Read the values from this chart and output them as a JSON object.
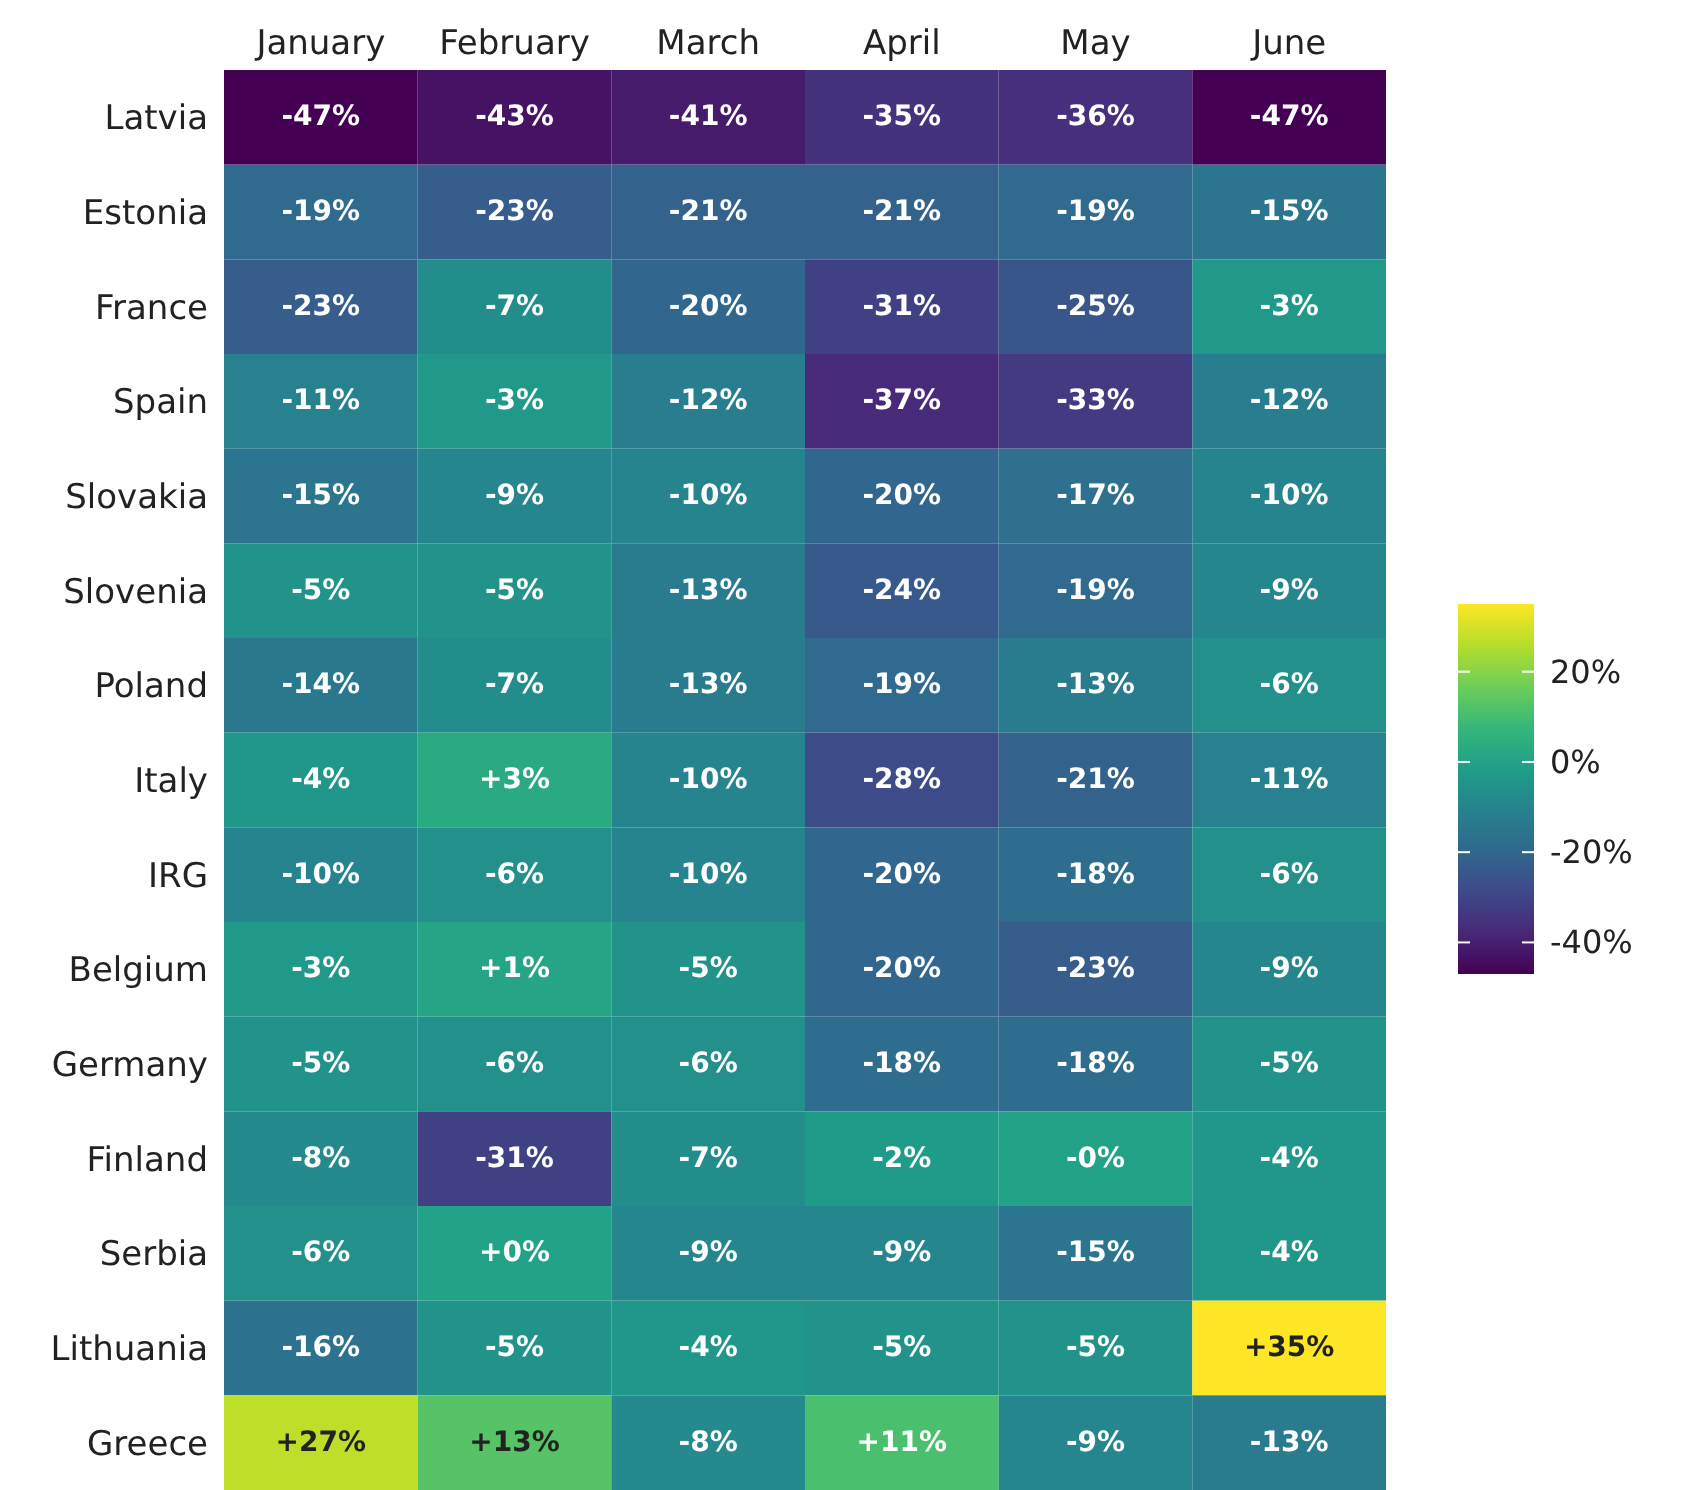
{
  "chart_data": {
    "type": "heatmap",
    "categories": [
      "January",
      "February",
      "March",
      "April",
      "May",
      "June"
    ],
    "y_categories": [
      "Latvia",
      "Estonia",
      "France",
      "Spain",
      "Slovakia",
      "Slovenia",
      "Poland",
      "Italy",
      "IRG",
      "Belgium",
      "Germany",
      "Finland",
      "Serbia",
      "Lithuania",
      "Greece"
    ],
    "cells": [
      [
        -47,
        -43,
        -41,
        -35,
        -36,
        -47
      ],
      [
        -19,
        -23,
        -21,
        -21,
        -19,
        -15
      ],
      [
        -23,
        -7,
        -20,
        -31,
        -25,
        -3
      ],
      [
        -11,
        -3,
        -12,
        -37,
        -33,
        -12
      ],
      [
        -15,
        -9,
        -10,
        -20,
        -17,
        -10
      ],
      [
        -5,
        -5,
        -13,
        -24,
        -19,
        -9
      ],
      [
        -14,
        -7,
        -13,
        -19,
        -13,
        -6
      ],
      [
        -4,
        3,
        -10,
        -28,
        -21,
        -11
      ],
      [
        -10,
        -6,
        -10,
        -20,
        -18,
        -6
      ],
      [
        -3,
        1,
        -5,
        -20,
        -23,
        -9
      ],
      [
        -5,
        -6,
        -6,
        -18,
        -18,
        -5
      ],
      [
        -8,
        -31,
        -7,
        -2,
        0,
        -4
      ],
      [
        -6,
        0,
        -9,
        -9,
        -15,
        -4
      ],
      [
        -16,
        -5,
        -4,
        -5,
        -5,
        35
      ],
      [
        27,
        13,
        -8,
        11,
        -9,
        -13
      ]
    ],
    "cell_labels": [
      [
        "-47%",
        "-43%",
        "-41%",
        "-35%",
        "-36%",
        "-47%"
      ],
      [
        "-19%",
        "-23%",
        "-21%",
        "-21%",
        "-19%",
        "-15%"
      ],
      [
        "-23%",
        "-7%",
        "-20%",
        "-31%",
        "-25%",
        "-3%"
      ],
      [
        "-11%",
        "-3%",
        "-12%",
        "-37%",
        "-33%",
        "-12%"
      ],
      [
        "-15%",
        "-9%",
        "-10%",
        "-20%",
        "-17%",
        "-10%"
      ],
      [
        "-5%",
        "-5%",
        "-13%",
        "-24%",
        "-19%",
        "-9%"
      ],
      [
        "-14%",
        "-7%",
        "-13%",
        "-19%",
        "-13%",
        "-6%"
      ],
      [
        "-4%",
        "+3%",
        "-10%",
        "-28%",
        "-21%",
        "-11%"
      ],
      [
        "-10%",
        "-6%",
        "-10%",
        "-20%",
        "-18%",
        "-6%"
      ],
      [
        "-3%",
        "+1%",
        "-5%",
        "-20%",
        "-23%",
        "-9%"
      ],
      [
        "-5%",
        "-6%",
        "-6%",
        "-18%",
        "-18%",
        "-5%"
      ],
      [
        "-8%",
        "-31%",
        "-7%",
        "-2%",
        "-0%",
        "-4%"
      ],
      [
        "-6%",
        "+0%",
        "-9%",
        "-9%",
        "-15%",
        "-4%"
      ],
      [
        "-16%",
        "-5%",
        "-4%",
        "-5%",
        "-5%",
        "+35%"
      ],
      [
        "+27%",
        "+13%",
        "-8%",
        "+11%",
        "-9%",
        "-13%"
      ]
    ],
    "clim": [
      -47,
      35
    ],
    "cticks": [
      {
        "value": 20,
        "label": "20%"
      },
      {
        "value": 0,
        "label": "0%"
      },
      {
        "value": -20,
        "label": "-20%"
      },
      {
        "value": -40,
        "label": "-40%"
      }
    ]
  }
}
